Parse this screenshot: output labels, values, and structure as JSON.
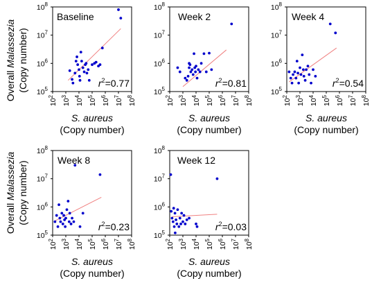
{
  "figure": {
    "ylabel_prefix": "Overall ",
    "ylabel_italic": "Malassezia",
    "ylabel_units": "(Copy number)",
    "xlabel_italic": "S. aureus",
    "xlabel_units": "(Copy number)"
  },
  "colors": {
    "points": "#0000cc",
    "fit": "#f08080",
    "frame": "#000000"
  },
  "chart_data": [
    {
      "type": "scatter",
      "title": "Baseline",
      "r2_label": "r",
      "r2_value": "=0.77",
      "log_scale": true,
      "xlim": [
        100,
        100000000
      ],
      "ylim": [
        100000,
        100000000
      ],
      "x_ticks": [
        "10",
        "10",
        "10",
        "10",
        "10",
        "10",
        "10"
      ],
      "x_tick_exp": [
        "2",
        "3",
        "4",
        "5",
        "6",
        "7",
        "8"
      ],
      "y_ticks": [
        "10",
        "10",
        "10",
        "10"
      ],
      "y_tick_exp": [
        "5",
        "6",
        "7",
        "8"
      ],
      "points": [
        {
          "x": 2000,
          "y": 550000
        },
        {
          "x": 3000,
          "y": 270000
        },
        {
          "x": 3500,
          "y": 200000
        },
        {
          "x": 5000,
          "y": 450000
        },
        {
          "x": 7000,
          "y": 1700000
        },
        {
          "x": 8000,
          "y": 900000
        },
        {
          "x": 10000,
          "y": 600000
        },
        {
          "x": 11000,
          "y": 350000
        },
        {
          "x": 12000,
          "y": 250000
        },
        {
          "x": 14000,
          "y": 2500000
        },
        {
          "x": 16000,
          "y": 1200000
        },
        {
          "x": 20000,
          "y": 700000
        },
        {
          "x": 25000,
          "y": 500000
        },
        {
          "x": 30000,
          "y": 900000
        },
        {
          "x": 35000,
          "y": 1000000
        },
        {
          "x": 40000,
          "y": 450000
        },
        {
          "x": 50000,
          "y": 600000
        },
        {
          "x": 60000,
          "y": 250000
        },
        {
          "x": 100000,
          "y": 900000
        },
        {
          "x": 150000,
          "y": 1000000
        },
        {
          "x": 200000,
          "y": 1100000
        },
        {
          "x": 300000,
          "y": 800000
        },
        {
          "x": 400000,
          "y": 900000
        },
        {
          "x": 600000,
          "y": 3500000
        },
        {
          "x": 10000000,
          "y": 80000000
        },
        {
          "x": 15000000,
          "y": 40000000
        },
        {
          "x": 6000,
          "y": 1200000
        }
      ],
      "fit": [
        [
          1500,
          250000
        ],
        [
          15000000,
          17000000
        ]
      ]
    },
    {
      "type": "scatter",
      "title": "Week 2",
      "r2_label": "r",
      "r2_value": "=0.81",
      "log_scale": true,
      "xlim": [
        100,
        100000000
      ],
      "ylim": [
        100000,
        100000000
      ],
      "x_ticks": [
        "10",
        "10",
        "10",
        "10",
        "10",
        "10",
        "10"
      ],
      "x_tick_exp": [
        "2",
        "3",
        "4",
        "5",
        "6",
        "7",
        "8"
      ],
      "y_ticks": [
        "10",
        "10",
        "10",
        "10"
      ],
      "y_tick_exp": [
        "5",
        "6",
        "7",
        "8"
      ],
      "points": [
        {
          "x": 400,
          "y": 700000
        },
        {
          "x": 600,
          "y": 500000
        },
        {
          "x": 1500,
          "y": 300000
        },
        {
          "x": 2000,
          "y": 250000
        },
        {
          "x": 2500,
          "y": 350000
        },
        {
          "x": 3000,
          "y": 700000
        },
        {
          "x": 3500,
          "y": 900000
        },
        {
          "x": 4000,
          "y": 500000
        },
        {
          "x": 5000,
          "y": 600000
        },
        {
          "x": 6000,
          "y": 400000
        },
        {
          "x": 7000,
          "y": 2200000
        },
        {
          "x": 8000,
          "y": 700000
        },
        {
          "x": 10000,
          "y": 800000
        },
        {
          "x": 12000,
          "y": 300000
        },
        {
          "x": 15000,
          "y": 600000
        },
        {
          "x": 20000,
          "y": 500000
        },
        {
          "x": 25000,
          "y": 1000000
        },
        {
          "x": 40000,
          "y": 2200000
        },
        {
          "x": 60000,
          "y": 500000
        },
        {
          "x": 100000,
          "y": 2300000
        },
        {
          "x": 150000,
          "y": 600000
        },
        {
          "x": 5000000,
          "y": 25000000
        },
        {
          "x": 3000,
          "y": 1000000
        },
        {
          "x": 9000,
          "y": 500000
        }
      ],
      "fit": [
        [
          1000,
          150000
        ],
        [
          2000000,
          3000000
        ]
      ]
    },
    {
      "type": "scatter",
      "title": "Week 4",
      "r2_label": "r",
      "r2_value": "=0.54",
      "log_scale": true,
      "xlim": [
        100,
        100000000
      ],
      "ylim": [
        100000,
        100000000
      ],
      "x_ticks": [
        "10",
        "10",
        "10",
        "10",
        "10",
        "10",
        "10"
      ],
      "x_tick_exp": [
        "2",
        "3",
        "4",
        "5",
        "6",
        "7",
        "8"
      ],
      "y_ticks": [
        "10",
        "10",
        "10",
        "10"
      ],
      "y_tick_exp": [
        "5",
        "6",
        "7",
        "8"
      ],
      "points": [
        {
          "x": 150,
          "y": 500000
        },
        {
          "x": 200,
          "y": 300000
        },
        {
          "x": 250,
          "y": 200000
        },
        {
          "x": 300,
          "y": 400000
        },
        {
          "x": 400,
          "y": 500000
        },
        {
          "x": 500,
          "y": 300000
        },
        {
          "x": 600,
          "y": 1200000
        },
        {
          "x": 800,
          "y": 200000
        },
        {
          "x": 1000,
          "y": 700000
        },
        {
          "x": 1200,
          "y": 400000
        },
        {
          "x": 1500,
          "y": 2000000
        },
        {
          "x": 1800,
          "y": 600000
        },
        {
          "x": 2000,
          "y": 350000
        },
        {
          "x": 2500,
          "y": 250000
        },
        {
          "x": 3000,
          "y": 600000
        },
        {
          "x": 4000,
          "y": 800000
        },
        {
          "x": 5000,
          "y": 400000
        },
        {
          "x": 7000,
          "y": 200000
        },
        {
          "x": 10000,
          "y": 600000
        },
        {
          "x": 15000,
          "y": 350000
        },
        {
          "x": 200000,
          "y": 25000000
        },
        {
          "x": 500000,
          "y": 12000000
        },
        {
          "x": 700,
          "y": 450000
        }
      ],
      "fit": [
        [
          150,
          220000
        ],
        [
          600000,
          3500000
        ]
      ]
    },
    {
      "type": "scatter",
      "title": "Week 8",
      "r2_label": "r",
      "r2_value": "=0.23",
      "log_scale": true,
      "xlim": [
        100,
        100000000
      ],
      "ylim": [
        100000,
        100000000
      ],
      "x_ticks": [
        "10",
        "10",
        "10",
        "10",
        "10",
        "10",
        "10"
      ],
      "x_tick_exp": [
        "2",
        "3",
        "4",
        "5",
        "6",
        "7",
        "8"
      ],
      "y_ticks": [
        "10",
        "10",
        "10",
        "10"
      ],
      "y_tick_exp": [
        "5",
        "6",
        "7",
        "8"
      ],
      "points": [
        {
          "x": 150,
          "y": 300000
        },
        {
          "x": 200,
          "y": 500000
        },
        {
          "x": 250,
          "y": 200000
        },
        {
          "x": 300,
          "y": 1200000
        },
        {
          "x": 350,
          "y": 400000
        },
        {
          "x": 400,
          "y": 300000
        },
        {
          "x": 500,
          "y": 600000
        },
        {
          "x": 600,
          "y": 250000
        },
        {
          "x": 700,
          "y": 500000
        },
        {
          "x": 800,
          "y": 350000
        },
        {
          "x": 1000,
          "y": 400000
        },
        {
          "x": 1200,
          "y": 800000
        },
        {
          "x": 1500,
          "y": 1600000
        },
        {
          "x": 1800,
          "y": 300000
        },
        {
          "x": 2000,
          "y": 600000
        },
        {
          "x": 2500,
          "y": 250000
        },
        {
          "x": 3000,
          "y": 400000
        },
        {
          "x": 5000,
          "y": 30000000
        },
        {
          "x": 12000,
          "y": 200000
        },
        {
          "x": 20000,
          "y": 600000
        },
        {
          "x": 400000,
          "y": 14000000
        },
        {
          "x": 900,
          "y": 200000
        },
        {
          "x": 4000,
          "y": 300000
        }
      ],
      "fit": [
        [
          150,
          320000
        ],
        [
          500000,
          2200000
        ]
      ]
    },
    {
      "type": "scatter",
      "title": "Week 12",
      "r2_label": "r",
      "r2_value": "=0.03",
      "log_scale": true,
      "xlim": [
        100,
        100000000
      ],
      "ylim": [
        100000,
        100000000
      ],
      "x_ticks": [
        "10",
        "10",
        "10",
        "10",
        "10",
        "10",
        "10"
      ],
      "x_tick_exp": [
        "2",
        "3",
        "4",
        "5",
        "6",
        "7",
        "8"
      ],
      "y_ticks": [
        "10",
        "10",
        "10",
        "10"
      ],
      "y_tick_exp": [
        "5",
        "6",
        "7",
        "8"
      ],
      "points": [
        {
          "x": 120,
          "y": 14000000
        },
        {
          "x": 130,
          "y": 700000
        },
        {
          "x": 150,
          "y": 400000
        },
        {
          "x": 180,
          "y": 300000
        },
        {
          "x": 200,
          "y": 900000
        },
        {
          "x": 220,
          "y": 200000
        },
        {
          "x": 250,
          "y": 600000
        },
        {
          "x": 300,
          "y": 350000
        },
        {
          "x": 350,
          "y": 250000
        },
        {
          "x": 400,
          "y": 800000
        },
        {
          "x": 500,
          "y": 200000
        },
        {
          "x": 600,
          "y": 400000
        },
        {
          "x": 700,
          "y": 250000
        },
        {
          "x": 800,
          "y": 600000
        },
        {
          "x": 1000,
          "y": 300000
        },
        {
          "x": 1200,
          "y": 500000
        },
        {
          "x": 1500,
          "y": 250000
        },
        {
          "x": 2000,
          "y": 350000
        },
        {
          "x": 10000,
          "y": 250000
        },
        {
          "x": 12000,
          "y": 200000
        },
        {
          "x": 400000,
          "y": 10000000
        },
        {
          "x": 260,
          "y": 120000
        },
        {
          "x": 3000,
          "y": 400000
        }
      ],
      "fit": [
        [
          150,
          450000
        ],
        [
          400000,
          550000
        ]
      ]
    }
  ]
}
